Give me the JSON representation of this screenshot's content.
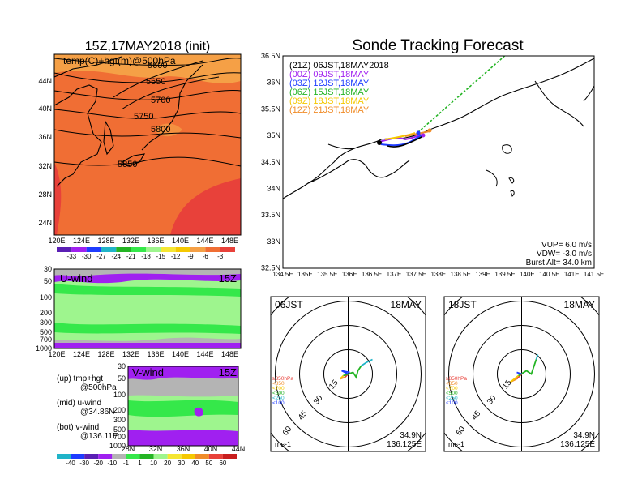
{
  "colors": {
    "warm_1": "#e8413a",
    "warm_2": "#f06e34",
    "warm_3": "#f5a046",
    "land_coast": "#000000",
    "purple": "#a020f0",
    "gray": "#b4b4b4",
    "green": "#35e84a",
    "lightgreen": "#9ef58e",
    "track_21z": "#000000",
    "track_00z": "#a020f0",
    "track_03z": "#1e3cff",
    "track_06z": "#24b424",
    "track_09z": "#f5c800",
    "track_12z": "#f08c28"
  },
  "left_top": {
    "title": "15Z,17MAY2018 (init)",
    "label": "temp(C)+hgt(m)@500hPa",
    "lat_ticks": [
      "44N",
      "40N",
      "36N",
      "32N",
      "28N",
      "24N"
    ],
    "lon_ticks": [
      "120E",
      "124E",
      "128E",
      "132E",
      "136E",
      "140E",
      "144E",
      "148E"
    ],
    "contours": [
      "5600",
      "5650",
      "5700",
      "5750",
      "5800",
      "5850"
    ],
    "colorbar": [
      "-33",
      "-30",
      "-27",
      "-24",
      "-21",
      "-18",
      "-15",
      "-12",
      "-9",
      "-6",
      "-3"
    ]
  },
  "left_mid": {
    "label": "U-wind",
    "time": "15Z",
    "p_ticks": [
      "30",
      "50",
      "100",
      "200",
      "300",
      "500",
      "700",
      "1000"
    ],
    "lon_ticks": [
      "120E",
      "124E",
      "128E",
      "132E",
      "136E",
      "140E",
      "144E",
      "148E"
    ]
  },
  "left_bot": {
    "label": "V-wind",
    "time": "15Z",
    "p_ticks": [
      "30",
      "50",
      "100",
      "200",
      "300",
      "500",
      "700",
      "1000"
    ],
    "lat_ticks": [
      "28N",
      "32N",
      "36N",
      "40N",
      "44N"
    ],
    "colorbar": [
      "-40",
      "-30",
      "-20",
      "-10",
      "-1",
      "1",
      "10",
      "20",
      "30",
      "40",
      "50",
      "60"
    ]
  },
  "legend_left": {
    "up": "(up)  tmp+hgt",
    "up2": "@500hPa",
    "mid": "(mid)  u-wind",
    "mid2": "@34.86N",
    "bot": "(bot)  v-wind",
    "bot2": "@136.11E"
  },
  "track": {
    "title": "Sonde Tracking Forecast",
    "lat_ticks": [
      "36.5N",
      "36N",
      "35.5N",
      "35N",
      "34.5N",
      "34N",
      "33.5N",
      "33N",
      "32.5N"
    ],
    "lon_ticks": [
      "134.5E",
      "135E",
      "135.5E",
      "136E",
      "136.5E",
      "137E",
      "137.5E",
      "138E",
      "138.5E",
      "139E",
      "139.5E",
      "140E",
      "140.5E",
      "141E",
      "141.5E"
    ],
    "legend": [
      {
        "text": "(21Z)  06JST,18MAY2018",
        "color": "#000000"
      },
      {
        "text": "(00Z)  09JST,18MAY",
        "color": "#a020f0"
      },
      {
        "text": "(03Z)  12JST,18MAY",
        "color": "#1e3cff"
      },
      {
        "text": "(06Z)  15JST,18MAY",
        "color": "#24b424"
      },
      {
        "text": "(09Z)  18JST,18MAY",
        "color": "#f5c800"
      },
      {
        "text": "(12Z)  21JST,18MAY",
        "color": "#f08c28"
      }
    ],
    "vup": "VUP=  6.0  m/s",
    "vdw": "VDW=  -3.0  m/s",
    "burst": "Burst Alt=  34.0  km"
  },
  "hodo": [
    {
      "time": "06JST",
      "date": "18MAY",
      "lat": "34.9N",
      "lon": "136.125E",
      "unit": "ms-1",
      "rings": [
        "15",
        "30",
        "45",
        "60"
      ],
      "levels": [
        {
          "t": "≥850hPa",
          "c": "#e8413a"
        },
        {
          "t": "<850",
          "c": "#f08c28"
        },
        {
          "t": "<700",
          "c": "#f5c800"
        },
        {
          "t": "<500",
          "c": "#24b424"
        },
        {
          "t": "<250",
          "c": "#20b4c8"
        },
        {
          "t": "<100",
          "c": "#1e3cff"
        }
      ]
    },
    {
      "time": "18JST",
      "date": "18MAY",
      "lat": "34.9N",
      "lon": "136.125E",
      "unit": "ms-1",
      "rings": [
        "15",
        "30",
        "45",
        "60"
      ],
      "levels": [
        {
          "t": "≥850hPa",
          "c": "#e8413a"
        },
        {
          "t": "<850",
          "c": "#f08c28"
        },
        {
          "t": "<700",
          "c": "#f5c800"
        },
        {
          "t": "<500",
          "c": "#24b424"
        },
        {
          "t": "<250",
          "c": "#20b4c8"
        },
        {
          "t": "<100",
          "c": "#1e3cff"
        }
      ]
    }
  ]
}
